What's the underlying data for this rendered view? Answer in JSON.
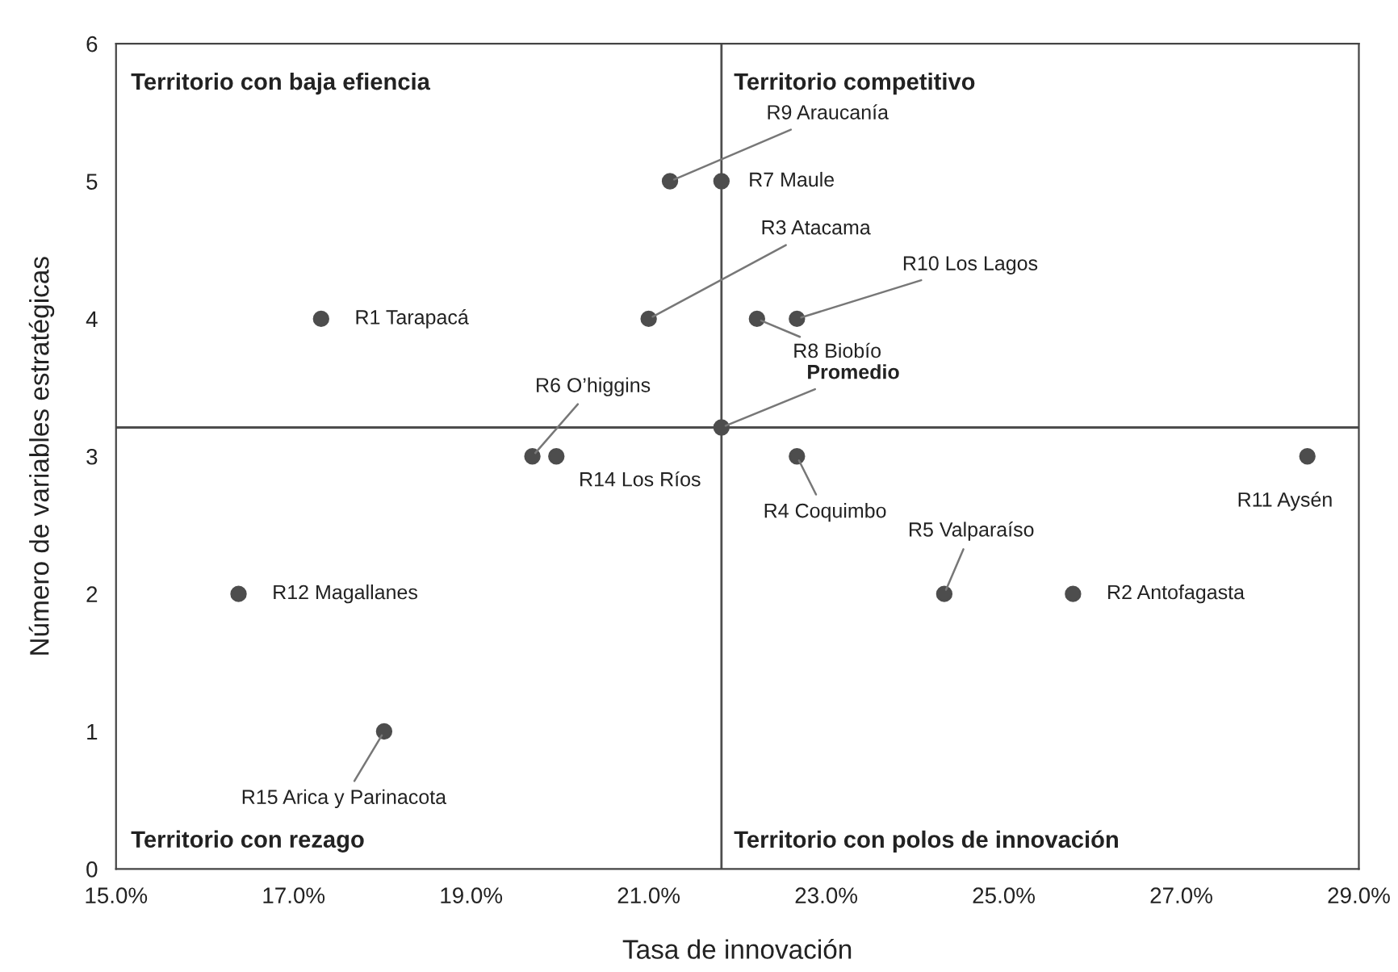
{
  "chart_data": {
    "type": "scatter",
    "xlabel": "Tasa de innovación",
    "ylabel": "Número de variables estratégicas",
    "x": [
      17.31,
      25.78,
      21.0,
      22.67,
      24.33,
      19.69,
      21.82,
      22.22,
      21.24,
      22.67,
      28.42,
      16.38,
      19.96,
      18.02,
      21.82
    ],
    "series": [
      {
        "color": "#4d4d4d",
        "values": [
          4,
          2,
          4,
          3,
          2,
          3,
          5,
          4,
          5,
          4,
          3,
          2,
          3,
          1,
          3.21
        ]
      }
    ],
    "xlim": [
      15,
      29
    ],
    "ylim": [
      0,
      6
    ],
    "xticks": [
      {
        "value": 15,
        "label": "15.0%"
      },
      {
        "value": 17,
        "label": "17.0%"
      },
      {
        "value": 19,
        "label": "19.0%"
      },
      {
        "value": 21,
        "label": "21.0%"
      },
      {
        "value": 23,
        "label": "23.0%"
      },
      {
        "value": 25,
        "label": "25.0%"
      },
      {
        "value": 27,
        "label": "27.0%"
      },
      {
        "value": 29,
        "label": "29.0%"
      }
    ],
    "yticks": [
      0,
      1,
      2,
      3,
      4,
      5,
      6
    ],
    "ref_lines": [
      {
        "axis": "x",
        "value": 21.82,
        "color": "#4d4d4d"
      },
      {
        "axis": "y",
        "value": 3.21,
        "color": "#4d4d4d"
      }
    ],
    "annotations": [
      "Territorio con baja efiencia",
      "Territorio competitivo",
      "Territorio con rezago",
      "Territorio con polos de innovación",
      {
        "text": "R1 Tarapacá",
        "x": 17.31,
        "y": 4
      },
      {
        "text": "R2 Antofagasta",
        "x": 25.78,
        "y": 2
      },
      {
        "text": "R3 Atacama",
        "x": 21.0,
        "y": 4
      },
      {
        "text": "R4 Coquimbo",
        "x": 22.67,
        "y": 3
      },
      {
        "text": "R5 Valparaíso",
        "x": 24.33,
        "y": 2
      },
      {
        "text": "R6 O’higgins",
        "x": 19.69,
        "y": 3
      },
      {
        "text": "R7 Maule",
        "x": 21.82,
        "y": 5
      },
      {
        "text": "R8 Biobío",
        "x": 22.22,
        "y": 4
      },
      {
        "text": "R9 Araucanía",
        "x": 21.24,
        "y": 5
      },
      {
        "text": "R10 Los Lagos",
        "x": 22.67,
        "y": 4
      },
      {
        "text": "R11 Aysén",
        "x": 28.42,
        "y": 3
      },
      {
        "text": "R12 Magallanes",
        "x": 16.38,
        "y": 2
      },
      {
        "text": "R14 Los Ríos",
        "x": 19.96,
        "y": 3
      },
      {
        "text": "R15 Arica y Parinacota",
        "x": 18.02,
        "y": 1
      },
      {
        "text": "Promedio",
        "x": 21.82,
        "y": 3.21
      }
    ],
    "grid": false,
    "marker": "circle"
  }
}
